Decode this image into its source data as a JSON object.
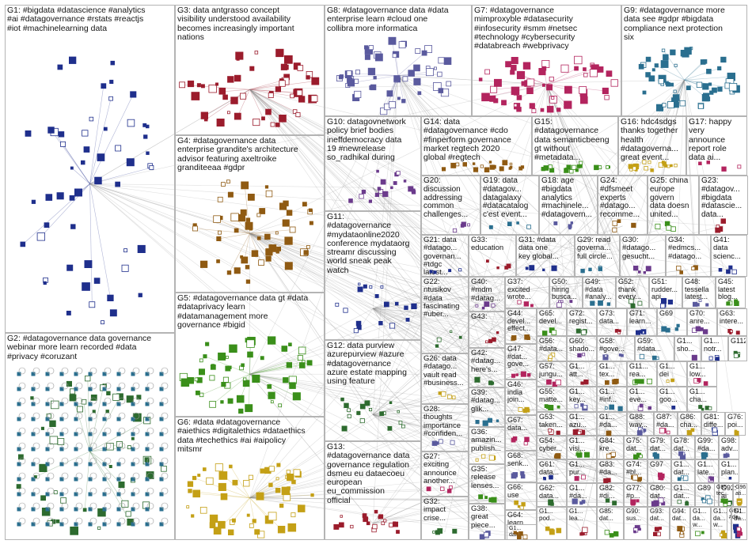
{
  "title": "",
  "groups": [
    {
      "id": "G1",
      "text": "G1: #bigdata #datascience #analytics\n#ai #datagovernance #rstats #reactjs\n#iot #machinelearning data"
    },
    {
      "id": "G2",
      "text": "G2: #datagovernance data governance\nwebinar more learn recorded #data\n#privacy #coruzant"
    },
    {
      "id": "G3",
      "text": "G3: data antgrasso concept\nvisibility understood availability\nbecomes increasingly important\nnations"
    },
    {
      "id": "G4",
      "text": "G4: #datagovernance data\nenterprise grandite's architecture\nadvisor featuring axeltroike\ngranditeeaa #gdpr"
    },
    {
      "id": "G5",
      "text": "G5: #datagovernance data gt #data\n#dataprivacy learn\n#datamanagement more\ngovernance #bigid"
    },
    {
      "id": "G6",
      "text": "G6: #data #datagovernance\n#aiethics #digitalethics #dataethics\ndata #techethics #ai #aipolicy\nmitsmr"
    },
    {
      "id": "G7",
      "text": "G7: #datagovernance\nmimproxyble #datasecurity\n#infosecurity #smm #netsec\n#technology #cybersecurity\n#databreach #webprivacy"
    },
    {
      "id": "G8",
      "text": "G8: #datagovernance data #data\nenterprise learn #cloud one\ncollibra more informatica"
    },
    {
      "id": "G9",
      "text": "G9: #datagovernance more\ndata see #gdpr #bigdata\ncompliance next protection\nsix"
    },
    {
      "id": "G10",
      "text": "G10: datagovnetwork\npolicy brief bodies\nineffdemocracy data\n19 #newrelease\nso_radhikal during"
    },
    {
      "id": "G11",
      "text": "G11:\n#datagovernance\n#mydataonline2020\nconference mydataorg\nstreamr discussing\nworld sneak peak\nwatch"
    },
    {
      "id": "G12",
      "text": "G12: data purview\nazurepurview #azure\n#datagovernance\nazure estate mapping\nusing feature"
    },
    {
      "id": "G13",
      "text": "G13:\n#datagovernance data\ngovernance regulation\ndsmeu eu dataecoeu\neuropean\neu_commission\nofficial"
    },
    {
      "id": "G14",
      "text": "G14: data\n#datagovernance #cdo\n#finperform governance\nmarket regtech 2020\nglobal #regtech"
    },
    {
      "id": "G15",
      "text": "G15:\n#datagovernance\ndata semanticbeeng\ngt without\n#metadata..."
    },
    {
      "id": "G16",
      "text": "G16: hdc4sdgs\nthanks together\nhealth\n#datagoverna...\ngreat event..."
    },
    {
      "id": "G17",
      "text": "G17: happy\nvery\nannounce\nreport role\ndata ai..."
    },
    {
      "id": "G18",
      "text": "G18: age\n#bigdata\nanalytics\n#machinele...\n#datagovern..."
    },
    {
      "id": "G19",
      "text": "G19: data\n#datagov...\ndatagalaxy\n#datacatalog\nc'est event..."
    },
    {
      "id": "G20",
      "text": "G20:\ndiscussion\naddressing\ncommon\nchallenges..."
    },
    {
      "id": "G21",
      "text": "G21: data\n#datago...\ngovernan...\n#tdgc\nlatest..."
    },
    {
      "id": "G22",
      "text": "G22:\nntusikov\n#data\nfascinating\n#uber..."
    },
    {
      "id": "G23",
      "text": "G23:\n#datagov...\n#bigdata\n#datascie...\ndata..."
    },
    {
      "id": "G24",
      "text": "G24:\n#dfsmeet\nexperts\n#datago...\nrecomme..."
    },
    {
      "id": "G25",
      "text": "G25: china\neurope\ngovern\ndata doesn\nunited..."
    },
    {
      "id": "G26",
      "text": "G26: data\n#datago...\nvault read\n#business..."
    },
    {
      "id": "G27",
      "text": "G27:\nexciting\nannounce\nanother..."
    },
    {
      "id": "G28",
      "text": "G28:\nthoughts\nimportance\n#confiden..."
    },
    {
      "id": "G29",
      "text": "G29: read\ngoverna...\nfull circle..."
    },
    {
      "id": "G30",
      "text": "G30:\n#datago...\ngesucht..."
    },
    {
      "id": "G31",
      "text": "G31: #data\ndata one\nkey global..."
    },
    {
      "id": "G32",
      "text": "G32:\nimpact\ncrise..."
    },
    {
      "id": "G33",
      "text": "G33:\neducation"
    },
    {
      "id": "G34",
      "text": "G34:\n#edmcs...\n#datago..."
    },
    {
      "id": "G35",
      "text": "G35:\nrelease\nlenses..."
    },
    {
      "id": "G36",
      "text": "G36:\namazin...\npublish..."
    },
    {
      "id": "G37",
      "text": "G37:\nexcited\nwrote..."
    },
    {
      "id": "G38",
      "text": "G38:\ngreat\npiece..."
    },
    {
      "id": "G39",
      "text": "G39:\n#datag...\nglik..."
    },
    {
      "id": "G40",
      "text": "G40:\n#mdm\n#datag..."
    },
    {
      "id": "G41",
      "text": "G41:\ndata\nscienc..."
    },
    {
      "id": "G42",
      "text": "G42:\n#datag...\nhere's..."
    },
    {
      "id": "G43",
      "text": "G43:"
    },
    {
      "id": "G44",
      "text": "G44:\ndevel...\neffect..."
    },
    {
      "id": "G45",
      "text": "G45:\nlatest\nblog..."
    },
    {
      "id": "G46",
      "text": "G46:\nindia\njoin..."
    },
    {
      "id": "G47",
      "text": "G47:\n#dat...\ngove..."
    },
    {
      "id": "G48",
      "text": "G48:\ntessella\nlatest..."
    },
    {
      "id": "G49",
      "text": "G49:\n#data\n#analy..."
    },
    {
      "id": "G50",
      "text": "G50:\nhiring\nbusca..."
    },
    {
      "id": "G51",
      "text": "G51:\nrudder...\napi..."
    },
    {
      "id": "G52",
      "text": "G52:\nthank\nevery..."
    },
    {
      "id": "G53",
      "text": "G53:\ntaken..."
    },
    {
      "id": "G54",
      "text": "G54:\ncyber..."
    },
    {
      "id": "G55",
      "text": "G55:\nmatte..."
    },
    {
      "id": "G56",
      "text": "G56:\n#data..."
    },
    {
      "id": "G57",
      "text": "G57:\njungu..."
    },
    {
      "id": "G58",
      "text": "G58:\n#gove..."
    },
    {
      "id": "G59",
      "text": "G59:\n#data..."
    },
    {
      "id": "G60",
      "text": "G60:\nshado..."
    },
    {
      "id": "G61",
      "text": "G61:\ndata..."
    },
    {
      "id": "G62",
      "text": "G62:\ndata..."
    },
    {
      "id": "G63",
      "text": "G63:\ninterе..."
    },
    {
      "id": "G64",
      "text": "G64:\nlearn..."
    },
    {
      "id": "G65",
      "text": "G65:\ndevel..."
    },
    {
      "id": "G66",
      "text": "G66:\nuse"
    },
    {
      "id": "G67",
      "text": "G67:\ndata..."
    },
    {
      "id": "G68",
      "text": "G68:\nsenk..."
    },
    {
      "id": "G69",
      "text": "G69"
    },
    {
      "id": "G70",
      "text": "G70:\nanre..."
    },
    {
      "id": "G71",
      "text": "G71:\nlearn..."
    },
    {
      "id": "G72",
      "text": "G72:\nregist..."
    },
    {
      "id": "G73",
      "text": "G73:\ndata..."
    },
    {
      "id": "G74",
      "text": "G74:\n#bl..."
    },
    {
      "id": "G75",
      "text": "G75:\ndat..."
    },
    {
      "id": "G76",
      "text": "G76:\npoi..."
    },
    {
      "id": "G77",
      "text": "G77:\n#p..."
    },
    {
      "id": "G78",
      "text": "G78:\ndat..."
    },
    {
      "id": "G79",
      "text": "G79:\ndat..."
    },
    {
      "id": "G80",
      "text": "G80:\ndat..."
    },
    {
      "id": "G81",
      "text": "G81:\ndiffe..."
    },
    {
      "id": "G82",
      "text": "G82:\n#di..."
    },
    {
      "id": "G83",
      "text": "G83:\n#da..."
    },
    {
      "id": "G84",
      "text": "G84:\nkre..."
    },
    {
      "id": "G85",
      "text": "G85:\ndat..."
    },
    {
      "id": "G86",
      "text": "G86:\ncha..."
    },
    {
      "id": "G87",
      "text": "G87:\n#da..."
    },
    {
      "id": "G88",
      "text": "G88:\nway..."
    },
    {
      "id": "G89",
      "text": "G89"
    },
    {
      "id": "G90",
      "text": "G90:\nsus..."
    },
    {
      "id": "G91",
      "text": "G91:\n#da..."
    },
    {
      "id": "G92",
      "text": "G92:\nai"
    },
    {
      "id": "G93",
      "text": "G93:\ndat..."
    },
    {
      "id": "G94",
      "text": "G94:\ndat..."
    },
    {
      "id": "G95",
      "text": "G95:\ntec..."
    },
    {
      "id": "G96",
      "text": "G96:\nati..."
    },
    {
      "id": "G97",
      "text": "G97"
    },
    {
      "id": "G98",
      "text": "G98:\nadv..."
    },
    {
      "id": "G99",
      "text": "G99:\n#da..."
    },
    {
      "id": "G100",
      "text": "G1...\nsho..."
    },
    {
      "id": "G101",
      "text": "G1...\nnotr..."
    },
    {
      "id": "G102",
      "text": "G112"
    },
    {
      "id": "G103",
      "text": "G1...\natt..."
    },
    {
      "id": "G104",
      "text": "G1...\ntex..."
    },
    {
      "id": "G105",
      "text": "G11...\nrea..."
    },
    {
      "id": "G106",
      "text": "G1...\ndei"
    },
    {
      "id": "G107",
      "text": "G1...\nlow..."
    },
    {
      "id": "G108",
      "text": "G1...\nkey..."
    },
    {
      "id": "G109",
      "text": "G1...\n#inf..."
    },
    {
      "id": "G110",
      "text": "G1...\neve..."
    },
    {
      "id": "G111",
      "text": "G1...\ngoo..."
    },
    {
      "id": "G113",
      "text": "G1...\ncha..."
    },
    {
      "id": "G114",
      "text": "G1...\nazu..."
    },
    {
      "id": "G115",
      "text": "G1...\n#da..."
    },
    {
      "id": "G116",
      "text": "G1...\nvisi..."
    },
    {
      "id": "G117",
      "text": "G1...\npod..."
    },
    {
      "id": "G118",
      "text": "G1...\npur..."
    },
    {
      "id": "G119",
      "text": "G1...\n#da..."
    },
    {
      "id": "G120",
      "text": "G1...\ndat..."
    },
    {
      "id": "G121",
      "text": "G1...\nlate..."
    },
    {
      "id": "G122",
      "text": "G1...\nplan..."
    },
    {
      "id": "G123",
      "text": "G1...\ndat..."
    },
    {
      "id": "G124",
      "text": "G1...\nlea..."
    },
    {
      "id": "G125",
      "text": "G1...\ndat..."
    },
    {
      "id": "G126",
      "text": "G1...\nda...\nw..."
    },
    {
      "id": "G127",
      "text": "G1...\nda...\nw..."
    },
    {
      "id": "G128",
      "text": "G1...\nda..."
    }
  ]
}
